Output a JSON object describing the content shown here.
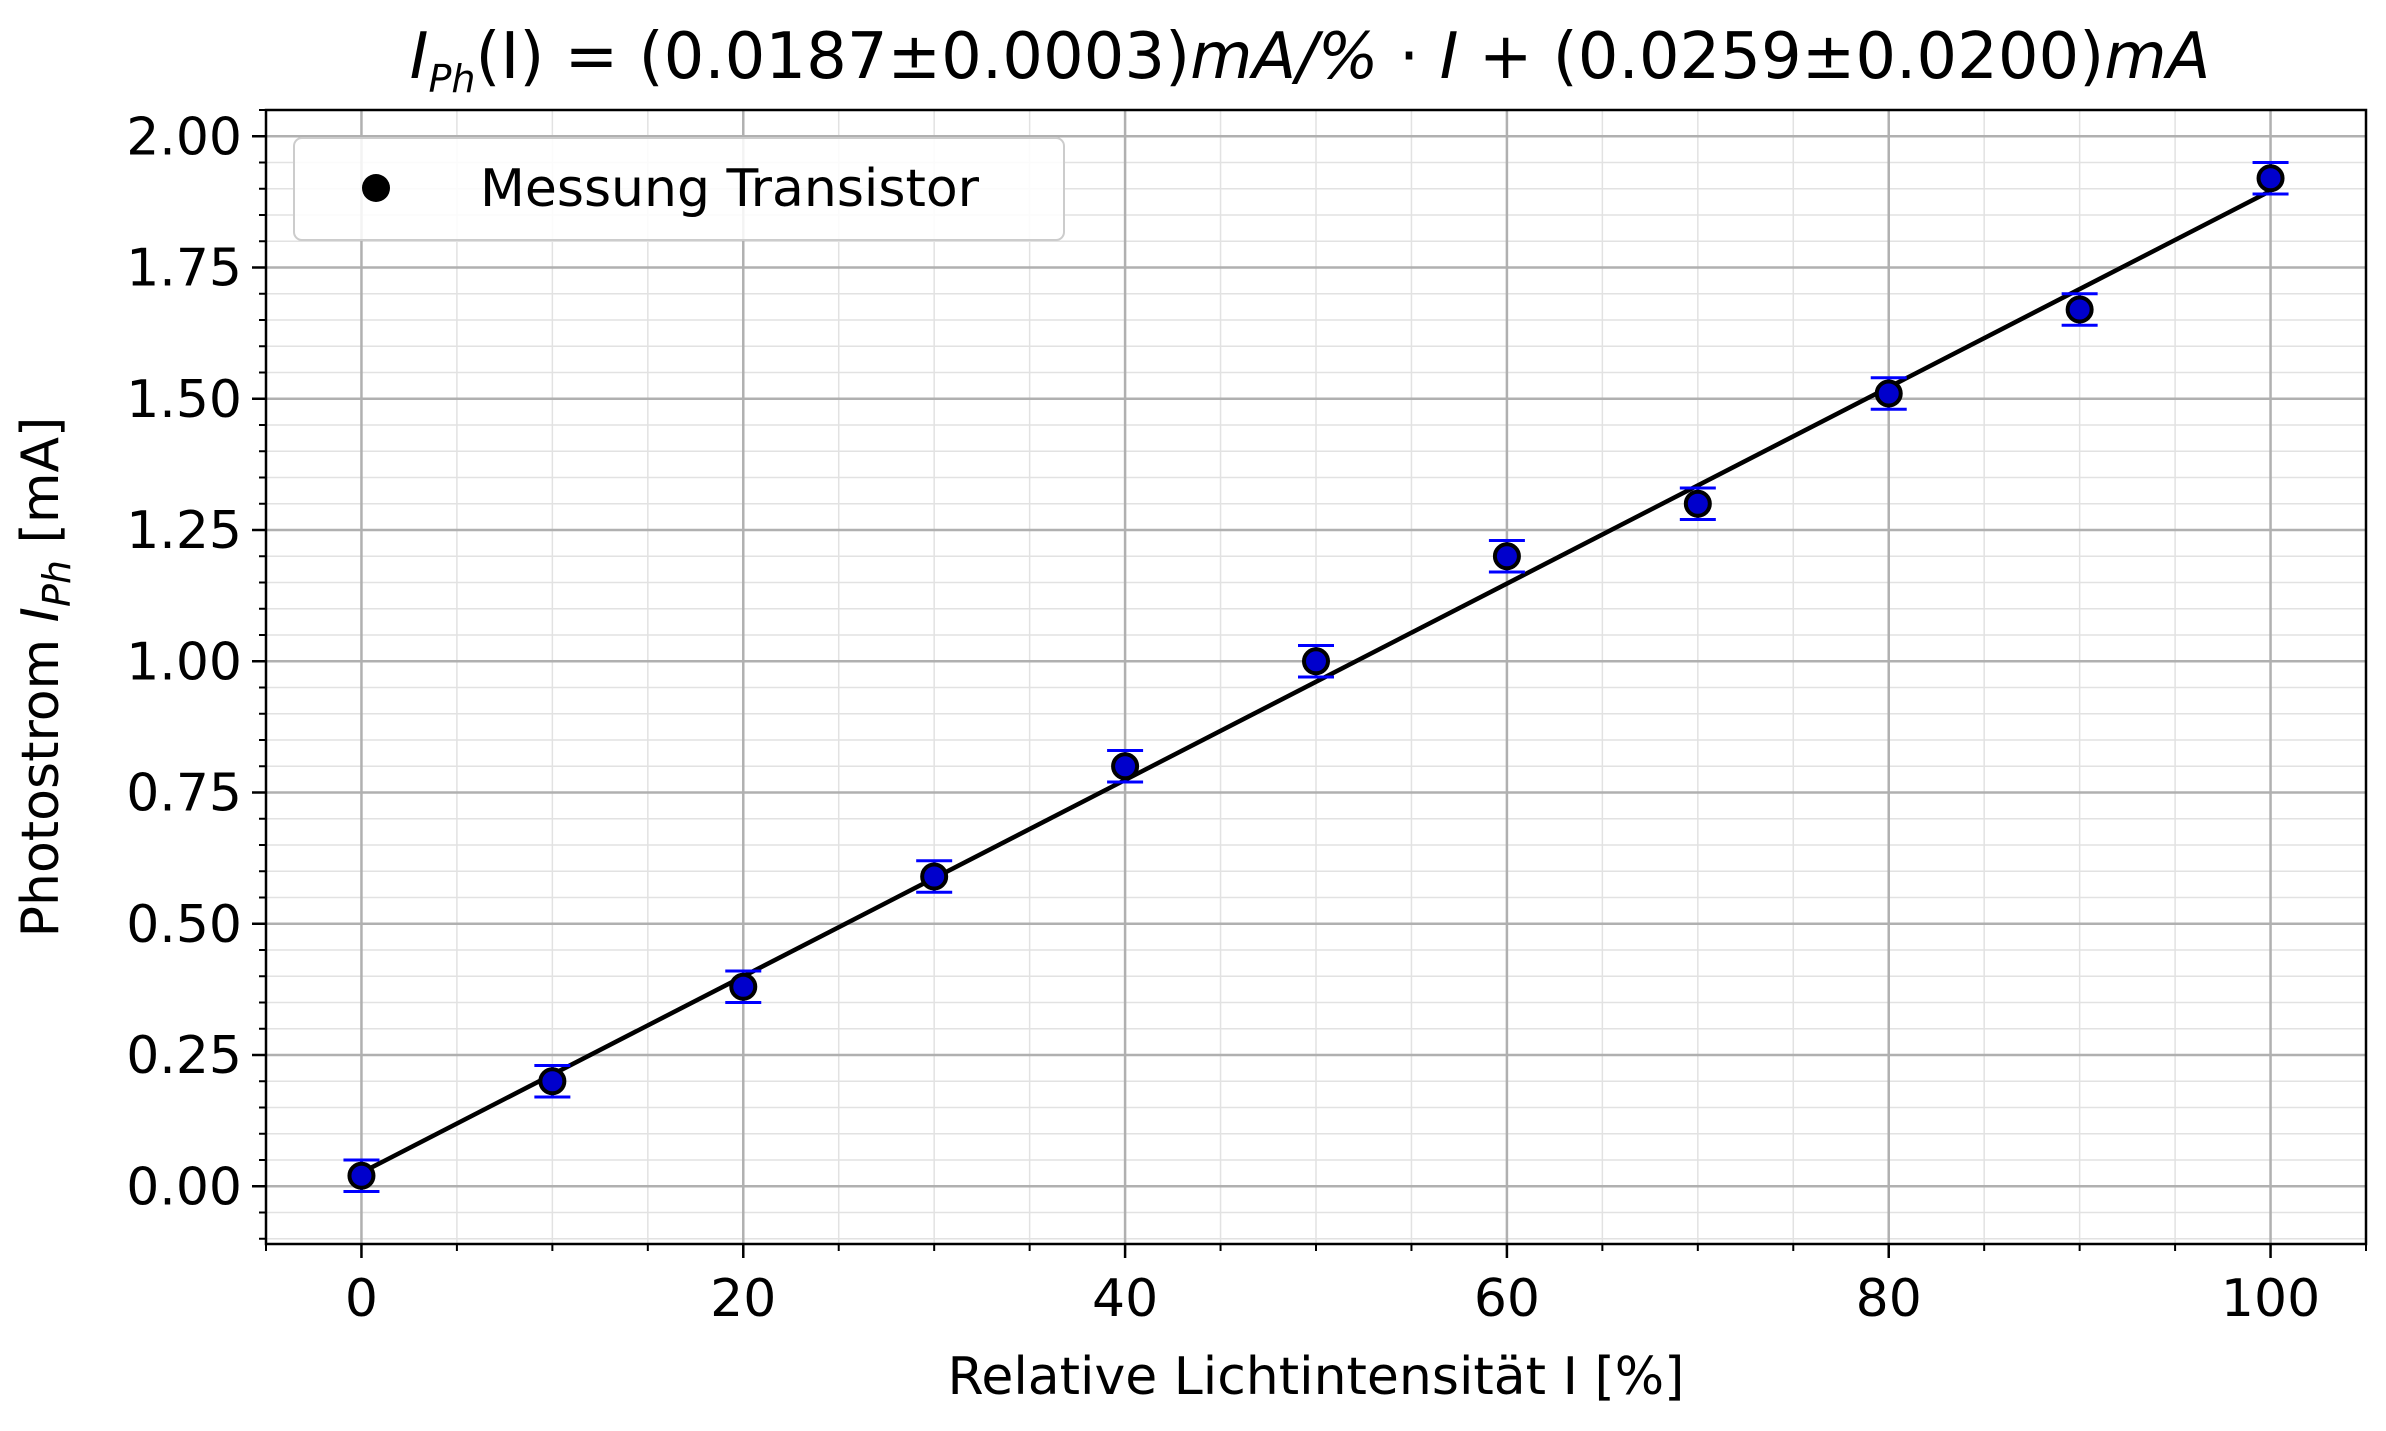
{
  "chart_data": {
    "type": "scatter",
    "title": {
      "lhs_symbol": "I",
      "lhs_sub": "Ph",
      "lhs_arg": "(I)",
      "equals": " = ",
      "slope_value": "(0.0187±0.0003)",
      "slope_unit": "mA/%",
      "mul": " · ",
      "var": "I",
      "plus": " + ",
      "intercept_value": "(0.0259±0.0200)",
      "intercept_unit": "mA"
    },
    "xlabel": "Relative Lichtintensität I [%]",
    "ylabel": {
      "prefix": "Photostrom ",
      "symbol": "I",
      "sub": "Ph",
      "suffix": " [mA]"
    },
    "xlim": [
      -5,
      105
    ],
    "ylim": [
      -0.11,
      2.05
    ],
    "xticks": [
      0,
      20,
      40,
      60,
      80,
      100
    ],
    "xtick_labels": [
      "0",
      "20",
      "40",
      "60",
      "80",
      "100"
    ],
    "yticks": [
      0,
      0.25,
      0.5,
      0.75,
      1.0,
      1.25,
      1.5,
      1.75,
      2.0
    ],
    "ytick_labels": [
      "0.00",
      "0.25",
      "0.50",
      "0.75",
      "1.00",
      "1.25",
      "1.50",
      "1.75",
      "2.00"
    ],
    "grid": true,
    "minor_grid": true,
    "legend_position": "upper-left",
    "series": [
      {
        "name": "Messung Transistor",
        "kind": "errorbar-scatter",
        "marker_color": "#0000cc",
        "marker_edge": "#000000",
        "errorbar_color": "#0000ff",
        "x": [
          0,
          10,
          20,
          30,
          40,
          50,
          60,
          70,
          80,
          90,
          100
        ],
        "y": [
          0.02,
          0.2,
          0.38,
          0.59,
          0.8,
          1.0,
          1.2,
          1.3,
          1.51,
          1.67,
          1.92
        ],
        "yerr": [
          0.03,
          0.03,
          0.03,
          0.03,
          0.03,
          0.03,
          0.03,
          0.03,
          0.03,
          0.03,
          0.03
        ]
      }
    ],
    "fit": {
      "kind": "line",
      "color": "#000000",
      "slope": 0.0187,
      "intercept": 0.0259
    }
  }
}
